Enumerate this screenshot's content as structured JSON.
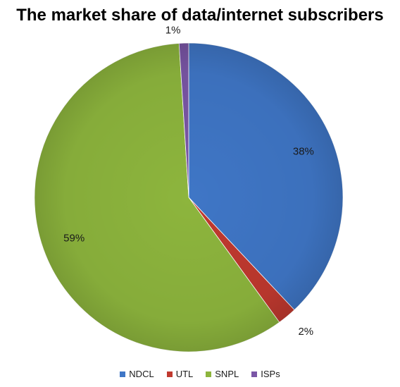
{
  "chart_data": {
    "type": "pie",
    "title": "The market share of data/internet subscribers",
    "categories": [
      "NDCL",
      "UTL",
      "SNPL",
      "ISPs"
    ],
    "values": [
      38,
      2,
      59,
      1
    ],
    "labels": [
      "38%",
      "2%",
      "59%",
      "1%"
    ],
    "colors": [
      "#3f76c6",
      "#c0392f",
      "#8db53d",
      "#7a56a6"
    ],
    "legend_position": "bottom"
  }
}
